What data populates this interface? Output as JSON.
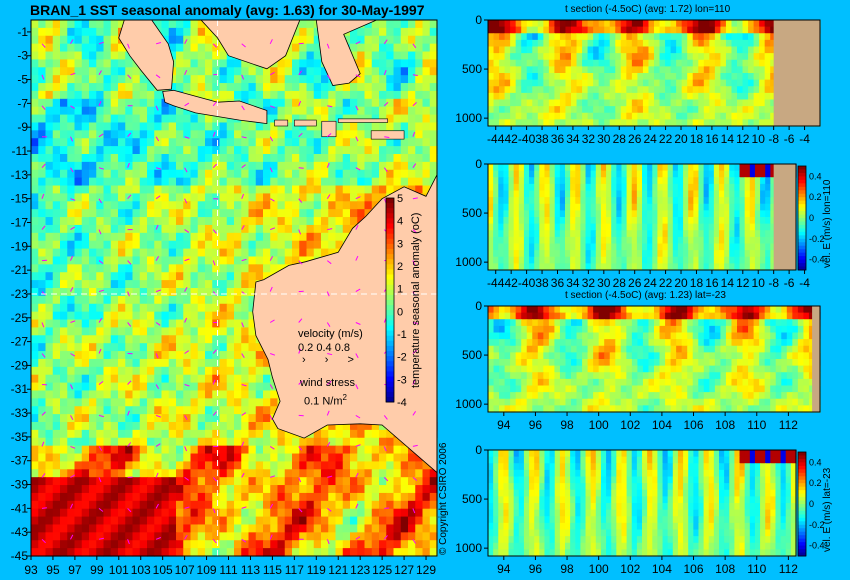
{
  "chart_data": [
    {
      "type": "heatmap",
      "title": "BRAN_1 SST seasonal anomaly (avg: 1.63) for 30-May-1997",
      "x_ticks": [
        "93",
        "95",
        "97",
        "99",
        "101",
        "103",
        "105",
        "107",
        "109",
        "111",
        "113",
        "115",
        "117",
        "119",
        "121",
        "123",
        "125",
        "127",
        "129"
      ],
      "y_ticks": [
        "-1",
        "-3",
        "-5",
        "-7",
        "-9",
        "-11",
        "-13",
        "-15",
        "-17",
        "-19",
        "-21",
        "-23",
        "-25",
        "-27",
        "-29",
        "-31",
        "-33",
        "-35",
        "-37",
        "-39",
        "-41",
        "-43",
        "-45"
      ],
      "xlim": [
        93,
        130
      ],
      "ylim": [
        -45,
        0
      ],
      "colorbar": {
        "label": "temperature seasonal anomaly (oC)",
        "ticks": [
          "5",
          "4",
          "3",
          "2",
          "1",
          "0",
          "-1",
          "-2",
          "-3",
          "-4"
        ],
        "range": [
          -4,
          5
        ]
      },
      "crosshair": {
        "lon": 110,
        "lat": -23
      },
      "velocity_legend": {
        "title": "velocity (m/s)",
        "values": "0.2 0.4 0.8",
        "arrows": "› › >"
      },
      "wind_legend": {
        "title": "wind stress",
        "value": "0.1 N/m",
        "superscript": "2"
      },
      "copyright": "© Copyright CSIRO 2006"
    },
    {
      "type": "heatmap",
      "title": "t section (-4.5oC) (avg: 1.72) lon=110",
      "x_ticks": [
        "-44",
        "42",
        "-40",
        "38",
        "36",
        "34",
        "32",
        "30",
        "28",
        "26",
        "24",
        "22",
        "20",
        "18",
        "16",
        "14",
        "12",
        "10",
        "-8",
        "-6",
        "-4"
      ],
      "y_ticks": [
        "0",
        "500",
        "1000"
      ],
      "xlim": [
        -45,
        -2
      ],
      "ylim": [
        0,
        1080
      ]
    },
    {
      "type": "heatmap",
      "title": "",
      "x_ticks": [
        "-44",
        "42",
        "-40",
        "38",
        "36",
        "34",
        "32",
        "30",
        "28",
        "26",
        "24",
        "22",
        "20",
        "18",
        "16",
        "14",
        "12",
        "10",
        "-8",
        "-6",
        "-4"
      ],
      "y_ticks": [
        "0",
        "500",
        "1000"
      ],
      "xlim": [
        -45,
        -2
      ],
      "ylim": [
        0,
        1080
      ],
      "colorbar": {
        "label": "vel. E (m/s) lon=110",
        "ticks": [
          "0.4",
          "0.2",
          "0",
          "-0.2",
          "-0.4"
        ],
        "range": [
          -0.5,
          0.5
        ]
      }
    },
    {
      "type": "heatmap",
      "title": "t section (-4.5oC) (avg: 1.23) lat=-23",
      "x_ticks": [
        "94",
        "96",
        "98",
        "100",
        "102",
        "104",
        "106",
        "108",
        "110",
        "112"
      ],
      "y_ticks": [
        "0",
        "500",
        "1000"
      ],
      "xlim": [
        93,
        114
      ],
      "ylim": [
        0,
        1080
      ]
    },
    {
      "type": "heatmap",
      "title": "",
      "x_ticks": [
        "94",
        "96",
        "98",
        "100",
        "102",
        "104",
        "106",
        "108",
        "110",
        "112"
      ],
      "y_ticks": [
        "0",
        "500",
        "1000"
      ],
      "xlim": [
        93,
        114
      ],
      "ylim": [
        0,
        1080
      ],
      "colorbar": {
        "label": "vel. E (m/s) lat=-23",
        "ticks": [
          "0.4",
          "0.2",
          "0",
          "-0.2",
          "-0.4"
        ],
        "range": [
          -0.5,
          0.5
        ]
      }
    }
  ],
  "colors": {
    "background": "#00bfff",
    "land": "#ffccaa",
    "section_land": "#c8a882"
  }
}
